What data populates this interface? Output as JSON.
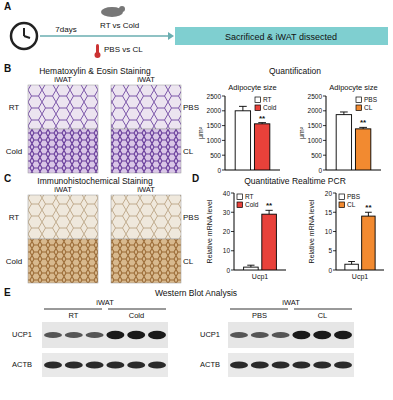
{
  "chart_data": [
    {
      "type": "bar",
      "title": "Adipocyte size",
      "ylabel": "μm²",
      "categories": [
        null
      ],
      "ylim": [
        0,
        2500
      ],
      "yticks": [
        0,
        500,
        1000,
        1500,
        2000,
        2500
      ],
      "legend": "top-right",
      "grid": false,
      "series": [
        {
          "name": "RT",
          "color": "#ffffff",
          "values": [
            2000
          ],
          "errors": [
            150
          ]
        },
        {
          "name": "Cold",
          "color": "#e8413a",
          "values": [
            1560
          ],
          "errors": [
            40
          ],
          "annotation": "**"
        }
      ]
    },
    {
      "type": "bar",
      "title": "Adipocyte size",
      "ylabel": "μm²",
      "categories": [
        null
      ],
      "ylim": [
        0,
        2500
      ],
      "yticks": [
        0,
        500,
        1000,
        1500,
        2000,
        2500
      ],
      "legend": "top-right",
      "grid": false,
      "series": [
        {
          "name": "PBS",
          "color": "#ffffff",
          "values": [
            1870
          ],
          "errors": [
            90
          ]
        },
        {
          "name": "CL",
          "color": "#f28a30",
          "values": [
            1390
          ],
          "errors": [
            50
          ],
          "annotation": "**"
        }
      ]
    },
    {
      "type": "bar",
      "ylabel": "Relative mRNA level",
      "categories": [
        "Ucp1"
      ],
      "ylim": [
        0,
        40
      ],
      "yticks": [
        0,
        10,
        20,
        30,
        40
      ],
      "legend": "top-left",
      "grid": false,
      "series": [
        {
          "name": "RT",
          "color": "#ffffff",
          "values": [
            1.5
          ],
          "errors": [
            1
          ]
        },
        {
          "name": "Cold",
          "color": "#e8413a",
          "values": [
            29
          ],
          "errors": [
            2
          ],
          "annotation": "**"
        }
      ]
    },
    {
      "type": "bar",
      "ylabel": "Relative mRNA level",
      "categories": [
        "Ucp1"
      ],
      "ylim": [
        0,
        20
      ],
      "yticks": [
        0,
        5,
        10,
        15,
        20
      ],
      "legend": "top-left",
      "grid": false,
      "series": [
        {
          "name": "PBS",
          "color": "#ffffff",
          "values": [
            1.5
          ],
          "errors": [
            0.7
          ]
        },
        {
          "name": "CL",
          "color": "#f28a30",
          "values": [
            14
          ],
          "errors": [
            1
          ],
          "annotation": "**"
        }
      ]
    }
  ],
  "figure": {
    "panels": [
      "A",
      "B",
      "C",
      "D",
      "E"
    ],
    "schematic": {
      "group1": "RT vs Cold",
      "group2": "PBS vs CL",
      "duration": "7days",
      "outcome": "Sacrificed & iWAT dissected"
    },
    "histology": {
      "he_title": "Hematoxylin & Eosin Staining",
      "ihc_title": "Immunohistochemical Staining",
      "tissue": "iWAT",
      "left": [
        "RT",
        "Cold"
      ],
      "right": [
        "PBS",
        "CL"
      ]
    },
    "quant_title": "Quantification",
    "pcr_title": "Quantitative Realtime PCR",
    "western": {
      "title": "Western Blot Analysis",
      "tissue": "iWAT",
      "left_groups": [
        "RT",
        "Cold"
      ],
      "right_groups": [
        "PBS",
        "CL"
      ],
      "proteins": [
        "UCP1",
        "ACTB"
      ]
    }
  }
}
